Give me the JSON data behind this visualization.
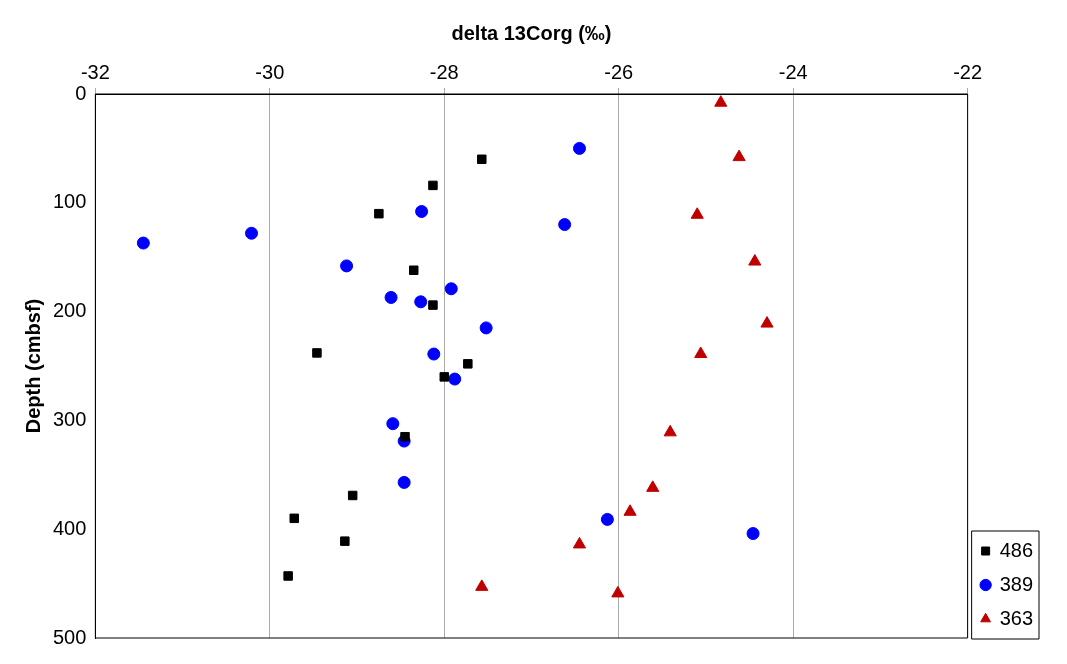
{
  "chart_data": {
    "type": "scatter",
    "xlabel": "delta 13Corg (‰)",
    "ylabel": "Depth (cmbsf)",
    "xlim": [
      -32,
      -22
    ],
    "xticks": [
      -32,
      -30,
      -28,
      -26,
      -24,
      -22
    ],
    "ylim": [
      500,
      0
    ],
    "yticks": [
      0,
      100,
      200,
      300,
      400,
      500
    ],
    "grid": "x",
    "legend": "bottom right",
    "series": [
      {
        "name": "363",
        "color": "#c00000",
        "marker": "triangle",
        "x": [
          -24.83,
          -24.62,
          -25.1,
          -24.44,
          -24.3,
          -25.06,
          -25.41,
          -25.61,
          -25.87,
          -26.45,
          -27.57,
          -26.01
        ],
        "values": [
          8,
          58,
          111,
          154,
          211,
          239,
          311,
          362,
          384,
          414,
          453,
          459
        ]
      },
      {
        "name": "389",
        "color": "#0000ff",
        "marker": "circle",
        "x": [
          -26.45,
          -26.62,
          -28.26,
          -30.21,
          -31.45,
          -29.12,
          -27.92,
          -28.61,
          -28.27,
          -27.52,
          -28.12,
          -27.88,
          -28.59,
          -28.46,
          -28.46,
          -26.13,
          -24.46
        ],
        "values": [
          50,
          120,
          108,
          128,
          137,
          158,
          179,
          187,
          191,
          215,
          239,
          262,
          303,
          319,
          357,
          391,
          404
        ]
      },
      {
        "name": "486",
        "color": "#000000",
        "marker": "square",
        "x": [
          -27.57,
          -28.13,
          -28.75,
          -28.35,
          -28.13,
          -29.46,
          -27.73,
          -28.0,
          -28.45,
          -29.05,
          -29.72,
          -29.14,
          -29.79
        ],
        "values": [
          60,
          84,
          110,
          162,
          194,
          238,
          248,
          260,
          315,
          369,
          390,
          411,
          443
        ]
      }
    ]
  }
}
